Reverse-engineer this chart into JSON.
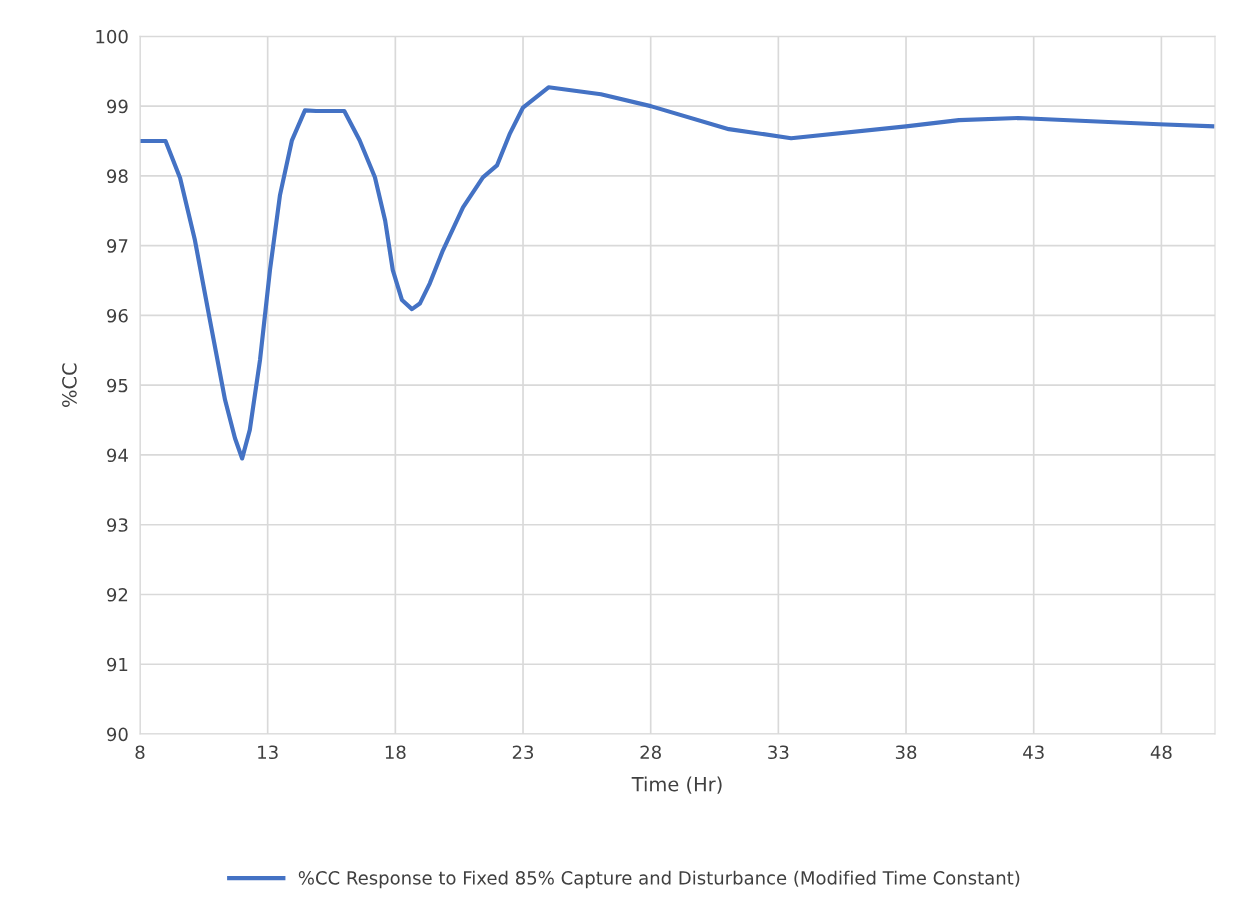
{
  "chart_data": {
    "type": "line",
    "xlabel": "Time (Hr)",
    "ylabel": "%CC",
    "x": [
      8,
      9.0,
      9.57,
      10.15,
      10.74,
      11.33,
      11.72,
      12.0,
      12.3,
      12.7,
      13.09,
      13.48,
      13.95,
      14.46,
      14.9,
      16.0,
      16.6,
      17.2,
      17.6,
      17.9,
      18.26,
      18.65,
      18.96,
      19.35,
      19.86,
      20.65,
      21.43,
      21.98,
      22.49,
      23.0,
      24.0,
      26.05,
      28.0,
      31.06,
      33.5,
      38.0,
      40.07,
      42.4,
      47.9,
      50.0
    ],
    "series": [
      {
        "name": "%CC Response to Fixed 85% Capture and Disturbance (Modified Time Constant)",
        "color": "#4472c4",
        "values": [
          98.5,
          98.5,
          97.97,
          97.08,
          95.93,
          94.79,
          94.24,
          93.95,
          94.36,
          95.36,
          96.65,
          97.72,
          98.51,
          98.94,
          98.93,
          98.93,
          98.51,
          97.98,
          97.36,
          96.65,
          96.22,
          96.09,
          96.17,
          96.46,
          96.93,
          97.55,
          97.98,
          98.15,
          98.61,
          98.98,
          99.27,
          99.17,
          99.0,
          98.67,
          98.54,
          98.71,
          98.8,
          98.83,
          98.74,
          98.71
        ]
      }
    ],
    "xlim": [
      8,
      50.1
    ],
    "xticks": [
      8,
      13,
      18,
      23,
      28,
      33,
      38,
      43,
      48
    ],
    "ylim": [
      90,
      100
    ],
    "yticks": [
      90,
      91,
      92,
      93,
      94,
      95,
      96,
      97,
      98,
      99,
      100
    ],
    "grid": true,
    "legend": "bottom",
    "marker": "none",
    "line_style": "solid"
  }
}
